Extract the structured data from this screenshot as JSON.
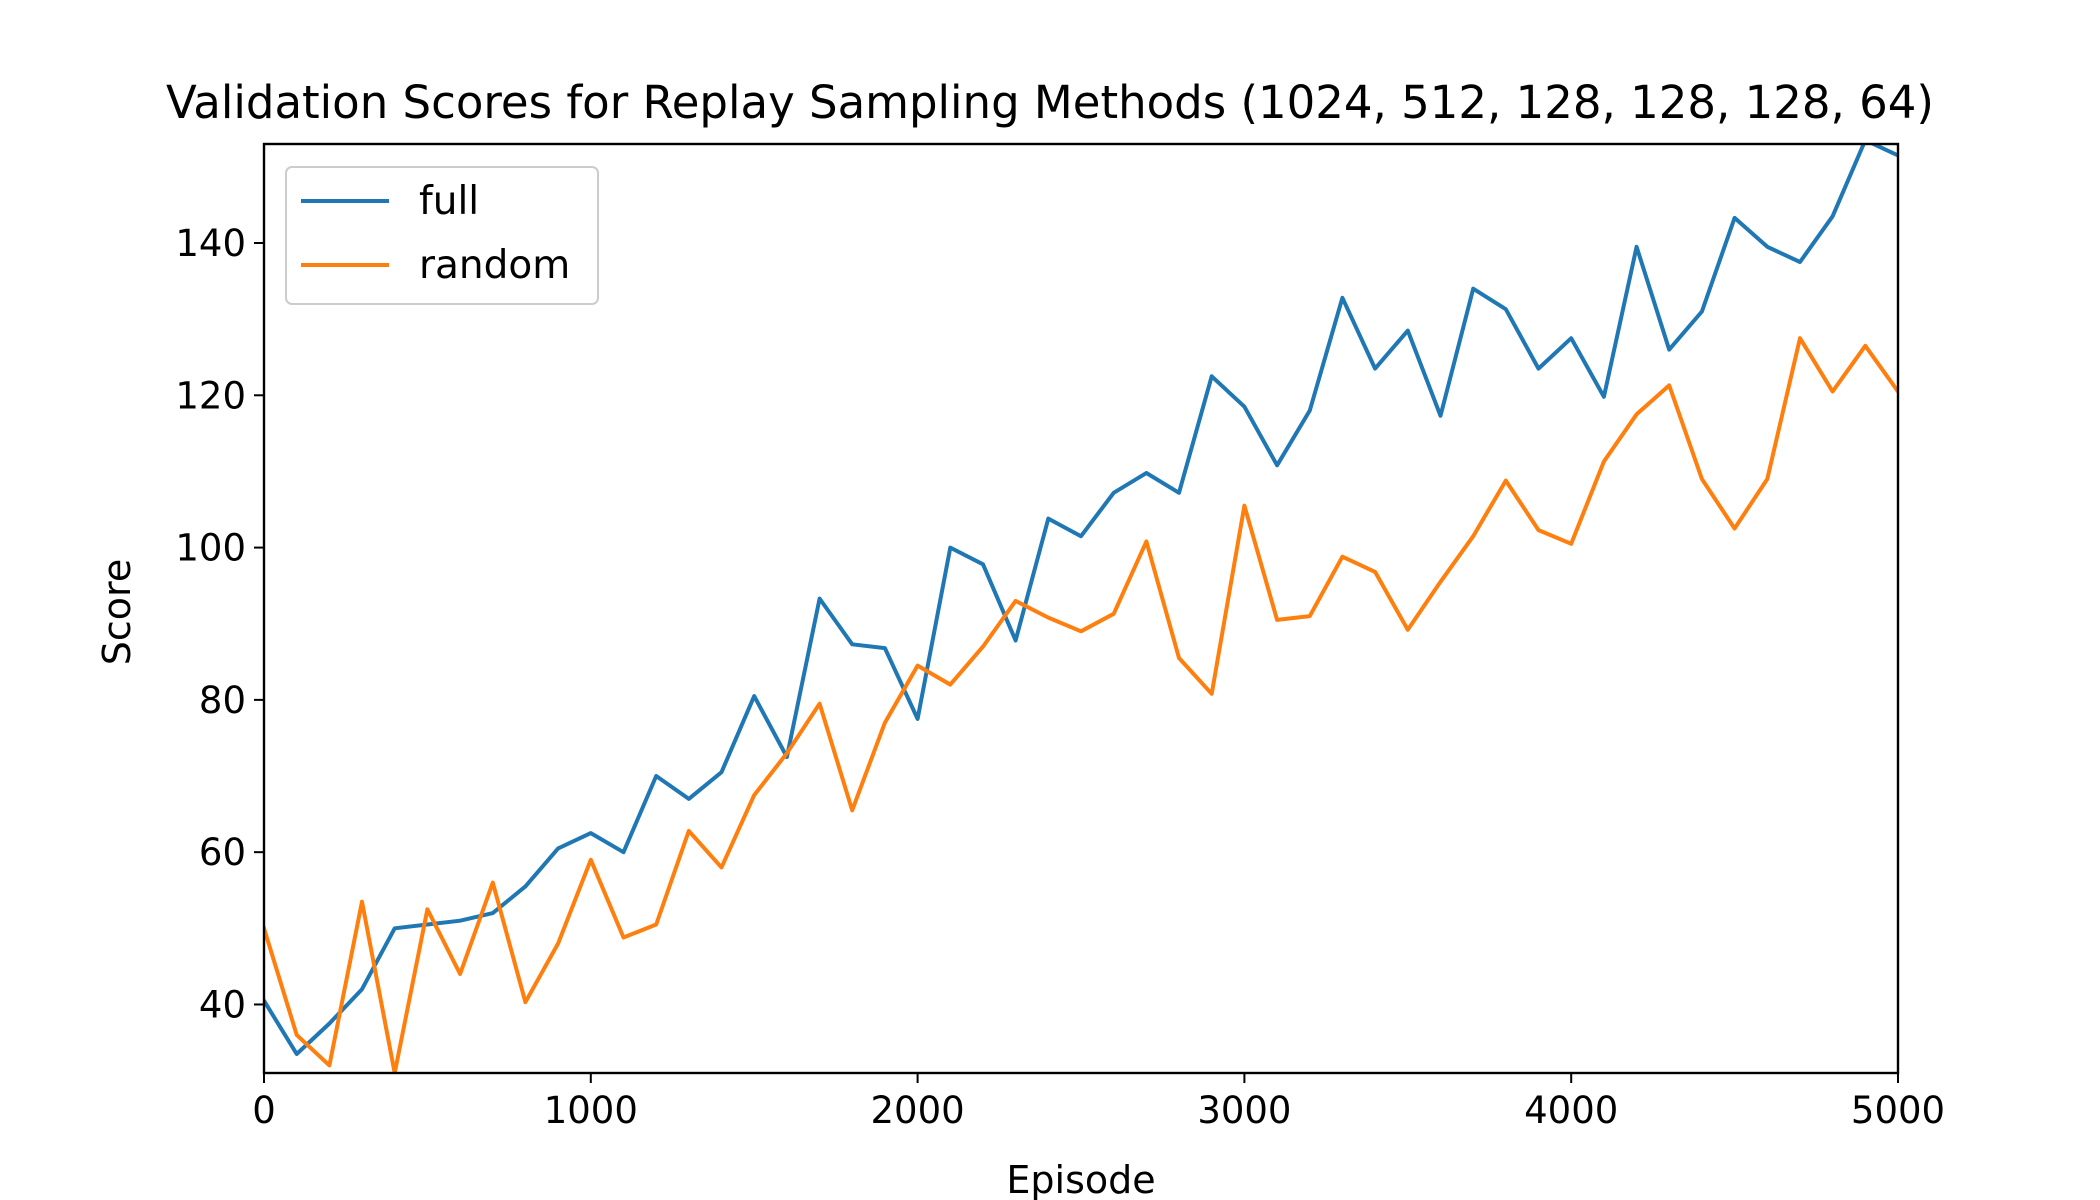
{
  "chart_data": {
    "type": "line",
    "title": "Validation Scores for Replay Sampling Methods (1024, 512, 128, 128, 128, 64)",
    "xlabel": "Episode",
    "ylabel": "Score",
    "xlim": [
      0,
      5000
    ],
    "ylim": [
      31,
      153
    ],
    "xticks": [
      0,
      1000,
      2000,
      3000,
      4000,
      5000
    ],
    "yticks": [
      40,
      60,
      80,
      100,
      120,
      140
    ],
    "grid": false,
    "legend_position": "top-left",
    "x": [
      0,
      100,
      200,
      300,
      400,
      500,
      600,
      700,
      800,
      900,
      1000,
      1100,
      1200,
      1300,
      1400,
      1500,
      1600,
      1700,
      1800,
      1900,
      2000,
      2100,
      2200,
      2300,
      2400,
      2500,
      2600,
      2700,
      2800,
      2900,
      3000,
      3100,
      3200,
      3300,
      3400,
      3500,
      3600,
      3700,
      3800,
      3900,
      4000,
      4100,
      4200,
      4300,
      4400,
      4500,
      4600,
      4700,
      4800,
      4900,
      5000
    ],
    "series": [
      {
        "name": "full",
        "color": "#1f77b4",
        "values": [
          40.5,
          33.5,
          37.5,
          42,
          50,
          50.5,
          51,
          52,
          55.5,
          60.5,
          62.5,
          60,
          70,
          67,
          70.5,
          80.5,
          72.5,
          93.3,
          87.3,
          86.8,
          77.5,
          100,
          97.8,
          87.8,
          103.8,
          101.5,
          107.2,
          109.8,
          107.2,
          122.5,
          118.5,
          110.8,
          118,
          132.8,
          123.5,
          128.5,
          117.3,
          134,
          131.3,
          123.5,
          127.5,
          119.8,
          139.5,
          126,
          131,
          143.3,
          139.5,
          137.5,
          143.5,
          153.5,
          151.5
        ]
      },
      {
        "name": "random",
        "color": "#ff7f0e",
        "values": [
          50,
          36,
          32,
          53.5,
          31,
          52.5,
          44,
          56,
          40.3,
          48,
          59,
          48.8,
          50.5,
          62.8,
          58,
          67.5,
          73,
          79.5,
          65.5,
          77,
          84.5,
          82,
          87,
          93,
          90.8,
          89,
          91.3,
          100.8,
          85.5,
          80.8,
          105.5,
          90.5,
          91,
          98.8,
          96.8,
          89.2,
          95.5,
          101.5,
          108.8,
          102.3,
          100.5,
          111.3,
          117.5,
          121.3,
          109,
          102.5,
          109,
          127.5,
          120.5,
          126.5,
          120.5
        ]
      }
    ]
  }
}
